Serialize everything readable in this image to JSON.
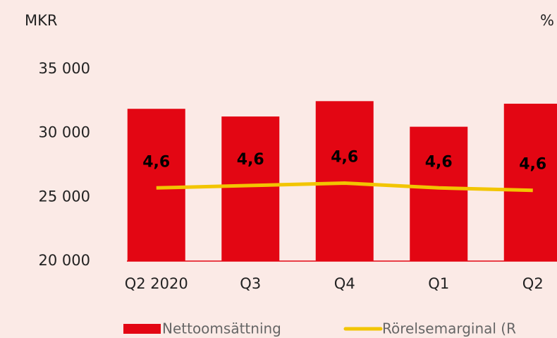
{
  "chart_data": {
    "type": "bar",
    "y_label": "MKR",
    "y2_label": "%",
    "categories": [
      "Q2 2020",
      "Q3",
      "Q4",
      "Q1",
      "Q2"
    ],
    "series": [
      {
        "name": "Nettoomsättning",
        "color": "#e30613",
        "type": "bar",
        "values": [
          31900,
          31300,
          32500,
          30500,
          32300
        ]
      },
      {
        "name": "Rörelsemarginal (R",
        "color": "#f2c500",
        "type": "line",
        "axis": "y2",
        "values": [
          4.61,
          4.63,
          4.65,
          4.61,
          4.59
        ],
        "value_labels": [
          "4,6",
          "4,6",
          "4,6",
          "4,6",
          "4,6"
        ]
      }
    ],
    "ylim": [
      20000,
      35000
    ],
    "yticks": [
      {
        "value": 20000,
        "label": "20 000"
      },
      {
        "value": 25000,
        "label": "25 000"
      },
      {
        "value": 30000,
        "label": "30 000"
      },
      {
        "value": 35000,
        "label": "35 000"
      }
    ],
    "y2lim": [
      4.0,
      5.6
    ]
  }
}
